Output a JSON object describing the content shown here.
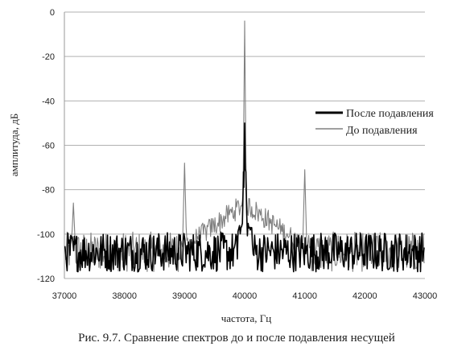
{
  "chart_data": {
    "type": "line",
    "caption": "Рис. 9.7. Сравнение спектров до и после подавления несущей",
    "xlabel": "частота, Гц",
    "ylabel": "амплитуда, дБ",
    "xlim": [
      37000,
      43000
    ],
    "ylim": [
      -120,
      0
    ],
    "x_ticks": [
      37000,
      38000,
      39000,
      40000,
      41000,
      42000,
      43000
    ],
    "y_ticks": [
      0,
      -20,
      -40,
      -60,
      -80,
      -100,
      -120
    ],
    "grid": "horizontal",
    "legend_position": "right",
    "series": [
      {
        "name": "После подавления",
        "color": "#000000",
        "noise_floor_db": -108,
        "peaks": [
          {
            "x": 40000,
            "y": -50
          },
          {
            "x": 39980,
            "y": -72
          },
          {
            "x": 40020,
            "y": -72
          }
        ]
      },
      {
        "name": "До подавления",
        "color": "#808080",
        "noise_floor_db": -108,
        "peaks": [
          {
            "x": 37150,
            "y": -86
          },
          {
            "x": 39000,
            "y": -68
          },
          {
            "x": 40000,
            "y": -4
          },
          {
            "x": 41000,
            "y": -71
          }
        ]
      }
    ]
  }
}
